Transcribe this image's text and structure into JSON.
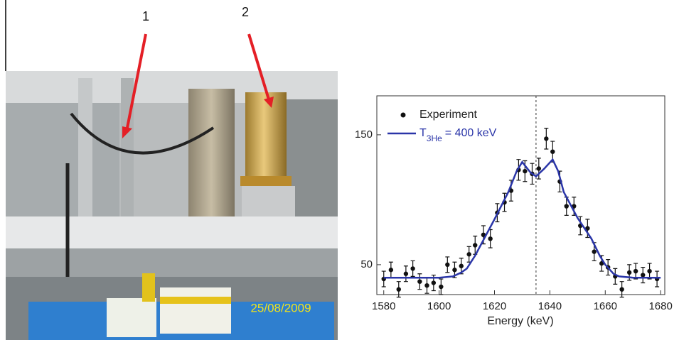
{
  "photo": {
    "labels": [
      "1",
      "2"
    ],
    "date_stamp": "25/08/2009"
  },
  "chart_data": {
    "type": "scatter",
    "x_label": "Energy (keV)",
    "xlim": [
      1577.5,
      1681.5
    ],
    "xticks": [
      1580,
      1600,
      1620,
      1640,
      1660,
      1680
    ],
    "ylim": [
      27,
      180
    ],
    "yticks": [
      50,
      150
    ],
    "vline": 1635,
    "series": [
      {
        "name": "Experiment",
        "type": "scatter",
        "color": "#111111",
        "x": [
          1580,
          1582.6,
          1585.4,
          1588,
          1590.5,
          1593,
          1595.6,
          1598,
          1600.7,
          1603,
          1605.6,
          1608,
          1610.8,
          1613,
          1616,
          1618.5,
          1621,
          1623.6,
          1626,
          1628.7,
          1631,
          1633.6,
          1636,
          1638.7,
          1641,
          1643.6,
          1646,
          1648.7,
          1651,
          1653.6,
          1656,
          1658.7,
          1661,
          1663.6,
          1666,
          1668.7,
          1671,
          1673.6,
          1676,
          1678.7
        ],
        "values": [
          39,
          46,
          31,
          43,
          47,
          37,
          34,
          36,
          33,
          50,
          46,
          49,
          58,
          65,
          73,
          70,
          90,
          98,
          107,
          123,
          122,
          120,
          124,
          147,
          137,
          114,
          95,
          95,
          80,
          78,
          60,
          51,
          48,
          41,
          31,
          44,
          45,
          42,
          45,
          39
        ],
        "errors": [
          6,
          6,
          6,
          6,
          6,
          6,
          6,
          6,
          6,
          6,
          6,
          6,
          6,
          7,
          7,
          7,
          7,
          7,
          8,
          8,
          8,
          8,
          8,
          8,
          8,
          8,
          7,
          7,
          7,
          7,
          7,
          6,
          6,
          6,
          6,
          6,
          6,
          6,
          6,
          6
        ]
      },
      {
        "name": "T",
        "name_subscript": "3He",
        "name_suffix": "= 400 keV",
        "type": "line",
        "color": "#2a35a8",
        "x": [
          1580,
          1590,
          1600,
          1605,
          1608,
          1610,
          1613,
          1615,
          1620,
          1625,
          1628,
          1630,
          1633,
          1635,
          1638,
          1641,
          1643,
          1645,
          1650,
          1655,
          1658,
          1660,
          1663,
          1665,
          1670,
          1680
        ],
        "values": [
          40,
          40,
          40,
          41,
          44,
          47,
          57,
          65,
          85,
          106,
          122,
          129,
          121,
          118,
          124,
          131,
          122,
          106,
          86,
          70,
          57,
          50,
          43,
          41,
          40,
          40
        ]
      }
    ]
  }
}
